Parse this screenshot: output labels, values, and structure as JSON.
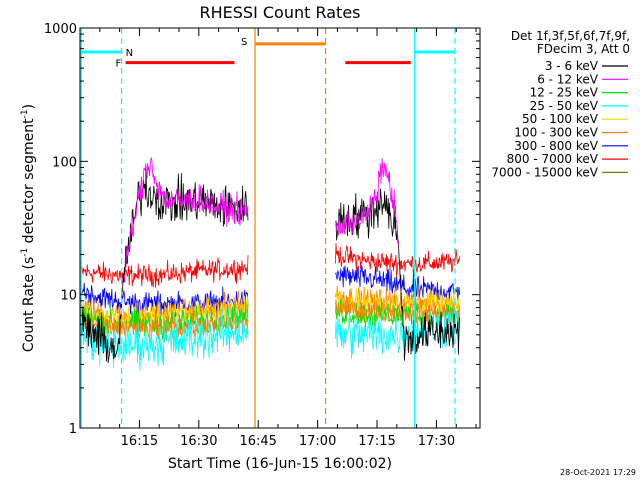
{
  "chart_data": {
    "type": "line",
    "title": "RHESSI Count Rates",
    "xlabel": "Start Time (16-Jun-15 16:00:02)",
    "ylabel_main": "Count Rate (s",
    "ylabel_sup1": "-1",
    "ylabel_mid": " detector segment",
    "ylabel_sup2": "-1",
    "ylabel_end": ")",
    "footer": "28-Oct-2021 17:29",
    "y_scale": "log",
    "xlim": [
      0,
      101
    ],
    "ylim": [
      1,
      1000
    ],
    "x_units": "minutes after 16:00",
    "x_ticks": [
      {
        "x": 15,
        "label": "16:15"
      },
      {
        "x": 30,
        "label": "16:30"
      },
      {
        "x": 45,
        "label": "16:45"
      },
      {
        "x": 60,
        "label": "17:00"
      },
      {
        "x": 75,
        "label": "17:15"
      },
      {
        "x": 90,
        "label": "17:30"
      }
    ],
    "y_ticks": [
      {
        "y": 1,
        "label": "1"
      },
      {
        "y": 10,
        "label": "10"
      },
      {
        "y": 100,
        "label": "100"
      },
      {
        "y": 1000,
        "label": "1000"
      }
    ],
    "legend_header": [
      "Det 1f,3f,5f,6f,7f,9f,",
      "FDecim 3, Att 0"
    ],
    "legend": [
      {
        "label": "3 - 6 keV",
        "color": "#000000"
      },
      {
        "label": "6 - 12 keV",
        "color": "#ff00ff"
      },
      {
        "label": "12 - 25 keV",
        "color": "#00e000"
      },
      {
        "label": "25 - 50 keV",
        "color": "#00ffff"
      },
      {
        "label": "50 - 100 keV",
        "color": "#ffd000"
      },
      {
        "label": "100 - 300 keV",
        "color": "#ff8000"
      },
      {
        "label": "300 - 800 keV",
        "color": "#0000ff"
      },
      {
        "label": "800 - 7000 keV",
        "color": "#ff0000"
      },
      {
        "label": "7000 - 15000 keV",
        "color": "#808000"
      }
    ],
    "data_segments": [
      {
        "x_start": 0,
        "x_end": 42.5
      },
      {
        "x_start": 64.5,
        "x_end": 96
      }
    ],
    "series": [
      {
        "color": "#ff0000",
        "noise": 0.07,
        "points": [
          [
            0,
            15
          ],
          [
            10,
            14
          ],
          [
            20,
            14
          ],
          [
            30,
            15
          ],
          [
            42.5,
            16
          ],
          [
            64.5,
            20
          ],
          [
            72,
            18
          ],
          [
            83,
            17
          ],
          [
            96,
            17.5
          ]
        ]
      },
      {
        "color": "#0000ff",
        "noise": 0.08,
        "points": [
          [
            0,
            11
          ],
          [
            5,
            9.5
          ],
          [
            15,
            8.5
          ],
          [
            30,
            8.5
          ],
          [
            42.5,
            9
          ],
          [
            64.5,
            14
          ],
          [
            75,
            13
          ],
          [
            83,
            11
          ],
          [
            96,
            10.5
          ]
        ]
      },
      {
        "color": "#ff8000",
        "noise": 0.08,
        "points": [
          [
            0,
            8
          ],
          [
            6,
            7
          ],
          [
            15,
            7
          ],
          [
            30,
            7.5
          ],
          [
            42.5,
            8.5
          ],
          [
            64.5,
            10
          ],
          [
            72,
            9
          ],
          [
            84,
            9
          ],
          [
            96,
            8.5
          ]
        ]
      },
      {
        "color": "#ffd000",
        "noise": 0.08,
        "points": [
          [
            0,
            7.5
          ],
          [
            8,
            6.5
          ],
          [
            20,
            7
          ],
          [
            35,
            7.5
          ],
          [
            42.5,
            8.5
          ],
          [
            64.5,
            9
          ],
          [
            75,
            8.5
          ],
          [
            85,
            8.5
          ],
          [
            96,
            8.5
          ]
        ]
      },
      {
        "color": "#00e000",
        "noise": 0.09,
        "points": [
          [
            0,
            7
          ],
          [
            8,
            6
          ],
          [
            20,
            6
          ],
          [
            35,
            6.5
          ],
          [
            42.5,
            7
          ],
          [
            64.5,
            7.5
          ],
          [
            75,
            7
          ],
          [
            85,
            7
          ],
          [
            96,
            7
          ]
        ]
      },
      {
        "color": "#ff8000",
        "noise": 0.07,
        "points": [
          [
            0,
            6
          ],
          [
            10,
            5.5
          ],
          [
            20,
            5.5
          ],
          [
            35,
            6
          ],
          [
            42.5,
            6
          ],
          [
            64.5,
            8
          ],
          [
            75,
            7.5
          ],
          [
            85,
            7.5
          ],
          [
            96,
            7
          ]
        ]
      },
      {
        "color": "#00ffff",
        "noise": 0.14,
        "points": [
          [
            0,
            5
          ],
          [
            8,
            4
          ],
          [
            15,
            4.2
          ],
          [
            25,
            4.5
          ],
          [
            35,
            5
          ],
          [
            42.5,
            5.5
          ],
          [
            64.5,
            5
          ],
          [
            72,
            5
          ],
          [
            80,
            5
          ],
          [
            86,
            5.5
          ],
          [
            96,
            6
          ]
        ]
      },
      {
        "color": "#000000",
        "noise": 0.14,
        "points": [
          [
            0,
            6
          ],
          [
            4,
            5
          ],
          [
            8,
            4
          ],
          [
            10,
            4
          ],
          [
            11,
            15
          ],
          [
            13,
            28
          ],
          [
            14.5,
            50
          ],
          [
            16,
            65
          ],
          [
            18,
            58
          ],
          [
            20,
            52
          ],
          [
            22,
            48
          ],
          [
            25,
            50
          ],
          [
            30,
            50
          ],
          [
            35,
            46
          ],
          [
            42.5,
            44
          ],
          [
            64.5,
            35
          ],
          [
            68,
            38
          ],
          [
            73,
            40
          ],
          [
            75,
            45
          ],
          [
            77,
            55
          ],
          [
            78,
            40
          ],
          [
            80,
            30
          ],
          [
            82,
            4.5
          ],
          [
            86,
            5
          ],
          [
            96,
            5.5
          ]
        ]
      },
      {
        "color": "#ff00ff",
        "noise": 0.09,
        "points": [
          [
            11,
            12
          ],
          [
            12.5,
            25
          ],
          [
            14,
            40
          ],
          [
            15.5,
            65
          ],
          [
            16.5,
            85
          ],
          [
            18,
            100
          ],
          [
            19.5,
            65
          ],
          [
            22,
            50
          ],
          [
            26,
            50
          ],
          [
            30,
            52
          ],
          [
            35,
            45
          ],
          [
            42.5,
            42
          ],
          [
            64.5,
            32
          ],
          [
            68,
            35
          ],
          [
            72,
            38
          ],
          [
            75,
            55
          ],
          [
            76.5,
            100
          ],
          [
            78,
            70
          ],
          [
            79.5,
            45
          ],
          [
            80.5,
            22
          ]
        ]
      }
    ],
    "vertical_markers": [
      {
        "x": 0.3,
        "color": "#00ffff",
        "style": "solid"
      },
      {
        "x": 10.5,
        "color": "#00ffff",
        "style": "dashed"
      },
      {
        "x": 44.2,
        "color": "#ff8000",
        "style": "solid"
      },
      {
        "x": 62,
        "color": "#ff8000",
        "style": "dashed"
      },
      {
        "x": 84.5,
        "color": "#00ffff",
        "style": "solid"
      },
      {
        "x": 94.7,
        "color": "#00ffff",
        "style": "dashed"
      }
    ],
    "flag_bars": [
      {
        "label": "N",
        "color": "#00ffff",
        "x_start": 0.3,
        "x_end": 10.5,
        "level": 660
      },
      {
        "label": "",
        "color": "#00ffff",
        "x_start": 84.5,
        "x_end": 94.7,
        "level": 660
      },
      {
        "label": "F",
        "color": "#ff0000",
        "x_start": 11.5,
        "x_end": 39,
        "level": 550
      },
      {
        "label": "",
        "color": "#ff0000",
        "x_start": 67,
        "x_end": 83.5,
        "level": 550
      },
      {
        "label": "S",
        "color": "#ff8000",
        "x_start": 44.2,
        "x_end": 62,
        "level": 760
      }
    ]
  }
}
